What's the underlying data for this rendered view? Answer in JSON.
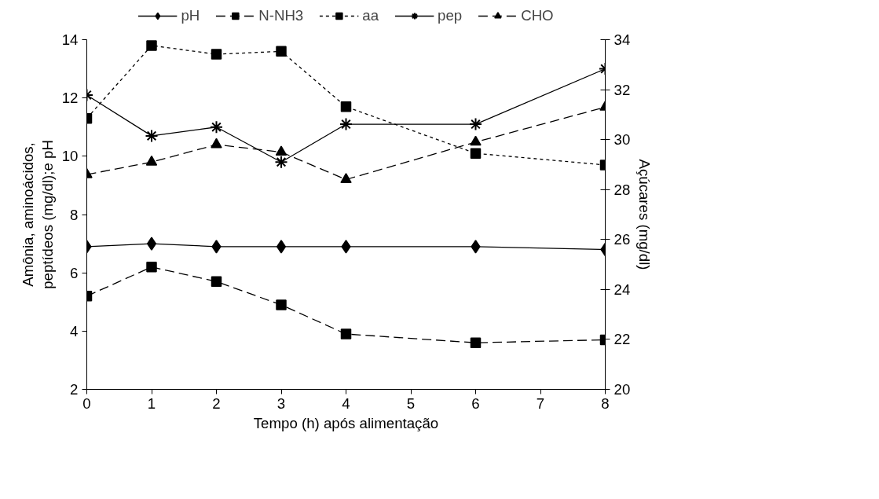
{
  "chart_data": {
    "type": "line",
    "xlabel": "Tempo (h) após alimentação",
    "ylabel": "Amônia, aminoácidos, peptídeos (mg/dl);e pH",
    "y2label": "Açúcares (mg/dl)",
    "x": [
      0,
      1,
      2,
      3,
      4,
      6,
      8
    ],
    "xlim": [
      0,
      8
    ],
    "xticks": [
      0,
      1,
      2,
      3,
      4,
      5,
      6,
      7,
      8
    ],
    "ylim": [
      2,
      14
    ],
    "yticks": [
      2,
      4,
      6,
      8,
      10,
      12,
      14
    ],
    "y2lim": [
      20,
      34
    ],
    "y2ticks": [
      20,
      22,
      24,
      26,
      28,
      30,
      32,
      34
    ],
    "grid": false,
    "legend": "top",
    "series": [
      {
        "name": "pH",
        "color": "#000000",
        "marker": "diamond",
        "line_style": "solid",
        "values": [
          6.9,
          7.0,
          6.9,
          6.9,
          6.9,
          6.9,
          6.8
        ]
      },
      {
        "name": "N-NH3",
        "color": "#000000",
        "marker": "square",
        "line_style": "dashed",
        "values": [
          5.2,
          6.2,
          5.7,
          4.9,
          3.9,
          3.6,
          3.7
        ]
      },
      {
        "name": "aa",
        "color": "#000000",
        "marker": "square",
        "line_style": "dotted",
        "values": [
          11.3,
          13.8,
          13.5,
          13.6,
          11.7,
          10.1,
          9.7
        ]
      },
      {
        "name": "pep",
        "color": "#000000",
        "marker": "cross",
        "line_style": "solid",
        "values": [
          12.1,
          10.7,
          11.0,
          9.8,
          11.1,
          11.1,
          13.0
        ]
      },
      {
        "name": "CHO",
        "color": "#000000",
        "marker": "triangle",
        "line_style": "dashed",
        "axis": "y2",
        "values": [
          28.6,
          29.1,
          29.8,
          29.5,
          28.4,
          29.9,
          31.3
        ]
      }
    ]
  }
}
